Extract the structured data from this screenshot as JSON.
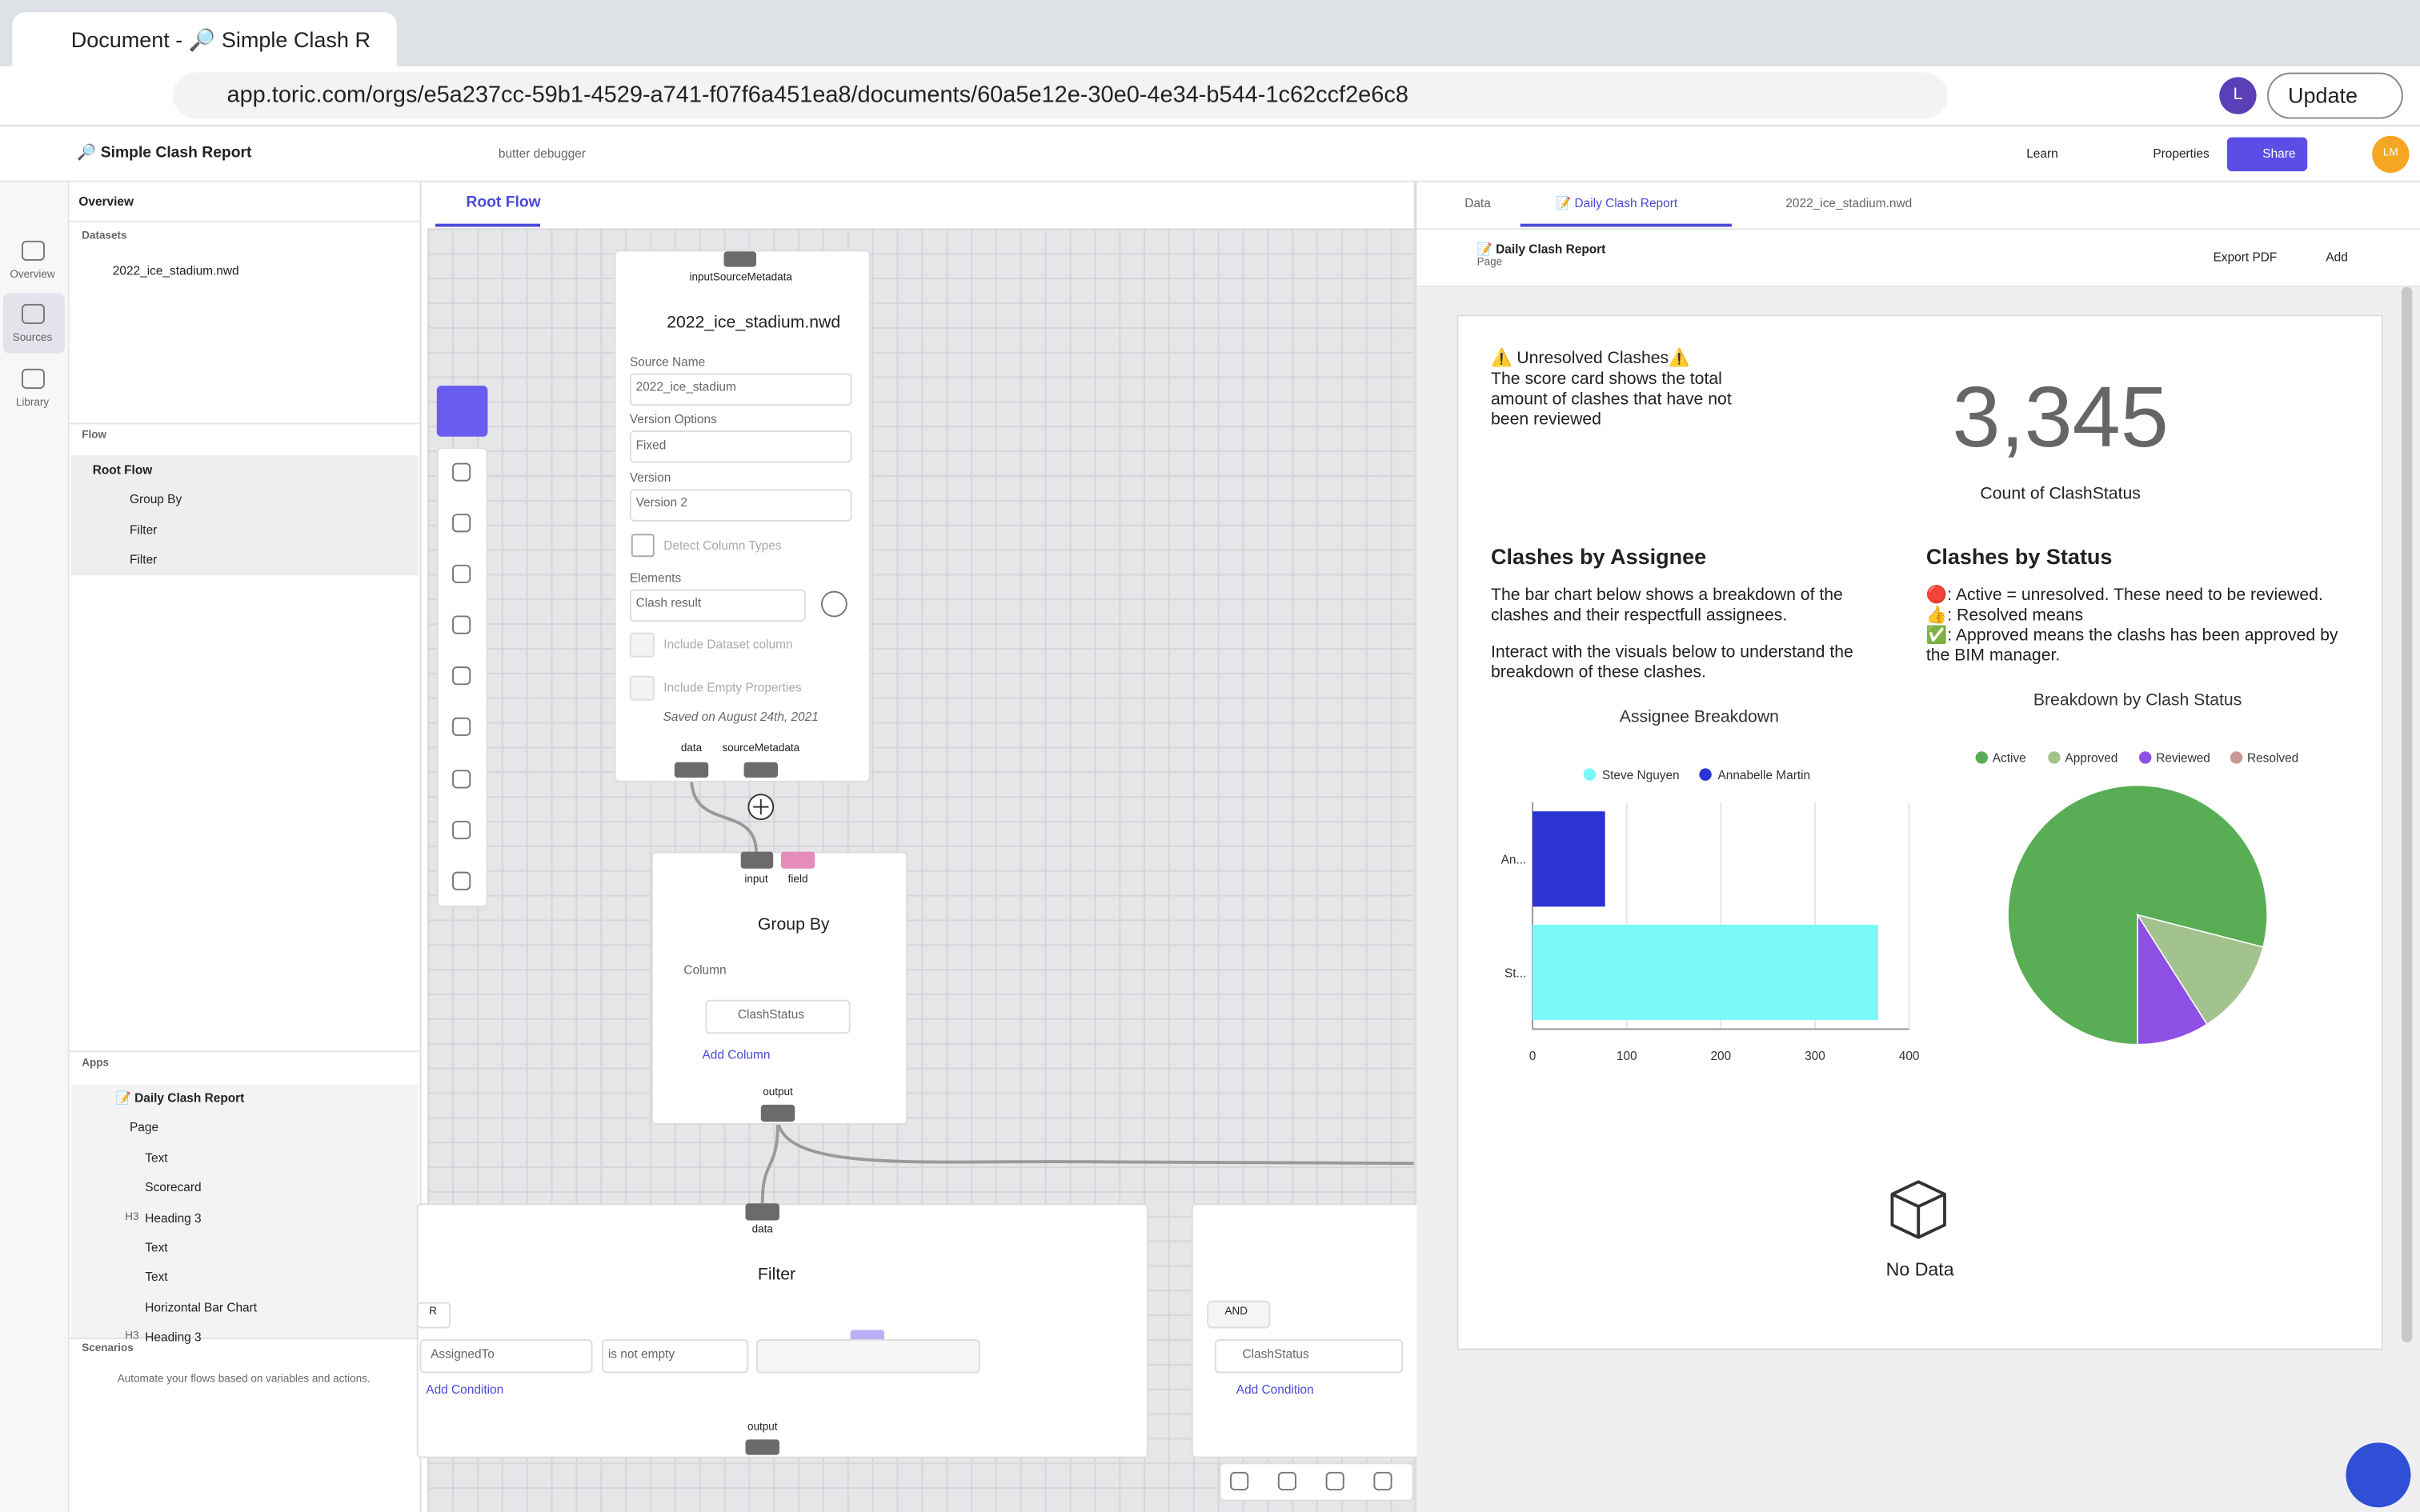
{
  "browser": {
    "tab_title": "Document - 🔎 Simple Clash R",
    "url": "app.toric.com/orgs/e5a237cc-59b1-4529-a741-f07f6a451ea8/documents/60a5e12e-30e0-4e34-b544-1c62ccf2e6c8",
    "avatar": "L",
    "update": "Update"
  },
  "header": {
    "title": "🔎 Simple Clash Report",
    "debugger": "butter debugger",
    "learn": "Learn",
    "properties": "Properties",
    "share": "Share",
    "avatar": "LM"
  },
  "rail": [
    "Overview",
    "Sources",
    "Library"
  ],
  "sidebar": {
    "title": "Overview",
    "datasets": "Datasets",
    "dataset_items": [
      "2022_ice_stadium.nwd"
    ],
    "flow": "Flow",
    "flow_items": [
      "Root Flow",
      "Group By",
      "Filter",
      "Filter"
    ],
    "apps": "Apps",
    "app_items": [
      "📝 Daily Clash Report",
      "Page",
      "Text",
      "Scorecard",
      "Heading 3",
      "Text",
      "Text",
      "Horizontal Bar Chart",
      "Heading 3"
    ],
    "heading_icon": "H3",
    "scenarios": "Scenarios",
    "scenarios_text": "Automate your flows based on variables and actions."
  },
  "flow": {
    "tab": "Root Flow",
    "source": {
      "top_port": "inputSourceMetadata",
      "title": "2022_ice_stadium.nwd",
      "source_name_label": "Source Name",
      "source_name": "2022_ice_stadium",
      "version_options_label": "Version Options",
      "version_options": "Fixed",
      "version_label": "Version",
      "version": "Version 2",
      "detect": "Detect Column Types",
      "elements_label": "Elements",
      "elements": "Clash result",
      "include_dataset": "Include Dataset column",
      "include_empty": "Include Empty Properties",
      "saved": "Saved on August 24th, 2021",
      "ports": [
        "data",
        "sourceMetadata"
      ]
    },
    "group_by": {
      "ports": [
        "input",
        "field"
      ],
      "title": "Group By",
      "column_label": "Column",
      "column": "ClashStatus",
      "add": "Add Column",
      "output": "output"
    },
    "filter": {
      "input": "data",
      "title": "Filter",
      "op_button": "R",
      "field": "AssignedTo",
      "operator": "is not empty",
      "add": "Add Condition",
      "output": "output"
    },
    "filter2": {
      "op_button": "AND",
      "field": "ClashStatus",
      "add": "Add Condition"
    }
  },
  "report_panel": {
    "tabs": [
      "Data",
      "📝 Daily Clash Report",
      "2022_ice_stadium.nwd"
    ],
    "title": "📝 Daily Clash Report",
    "subtitle": "Page",
    "export": "Export PDF",
    "add": "Add"
  },
  "report": {
    "score_heading": "⚠️ Unresolved Clashes⚠️",
    "score_text": "The score card shows the total amount of clashes that have not been reviewed",
    "score_value": "3,345",
    "score_label": "Count of ClashStatus",
    "assignee_heading": "Clashes by Assignee",
    "assignee_text": [
      "The bar chart below shows a breakdown of the clashes and their respectfull assignees.",
      "Interact with the visuals below to understand the breakdown of these clashes."
    ],
    "status_heading": "Clashes by Status",
    "status_lines": [
      "🔴: Active = unresolved. These need to be reviewed.",
      "👍: Resolved means",
      "✅: Approved means the clashs has been approved by the BIM manager."
    ],
    "no_data": "No Data"
  },
  "chart_data": [
    {
      "type": "bar",
      "orientation": "horizontal",
      "title": "Assignee Breakdown",
      "categories": [
        "An...",
        "St..."
      ],
      "series": [
        {
          "name": "Steve Nguyen",
          "color": "#79f9f9",
          "values": [
            null,
            367
          ]
        },
        {
          "name": "Annabelle Martin",
          "color": "#2c33d4",
          "values": [
            77,
            null
          ]
        }
      ],
      "xlim": [
        0,
        400
      ],
      "xticks": [
        0,
        100,
        200,
        300,
        400
      ],
      "grid": true
    },
    {
      "type": "pie",
      "title": "Breakdown by Clash Status",
      "categories": [
        "Active",
        "Approved",
        "Reviewed",
        "Resolved"
      ],
      "values": [
        79,
        12,
        9,
        0
      ],
      "colors": [
        "#58ad55",
        "#a2c38e",
        "#8d4fe4",
        "#c89893"
      ]
    }
  ]
}
